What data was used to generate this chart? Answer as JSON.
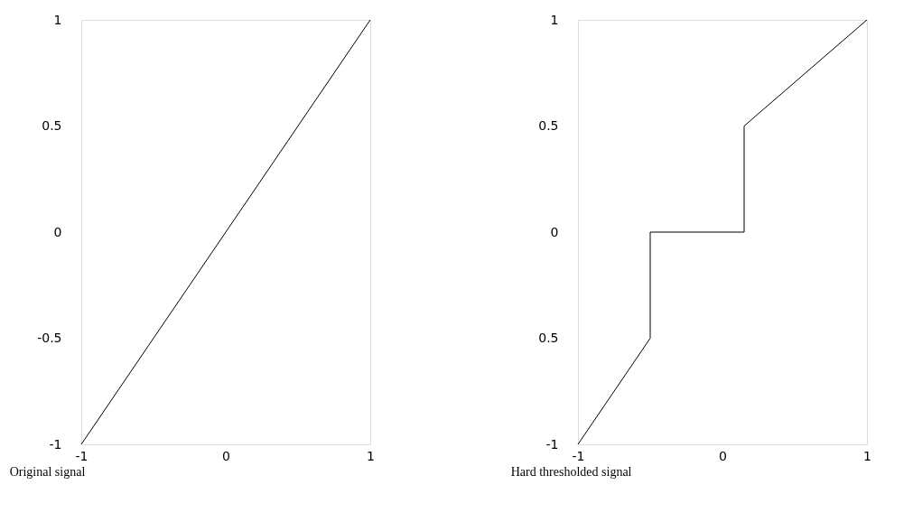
{
  "chart_data": [
    {
      "type": "line",
      "title": "Original signal",
      "x": [
        -1,
        1
      ],
      "values": [
        -1,
        1
      ],
      "xlim": [
        -1,
        1
      ],
      "ylim": [
        -1,
        1
      ],
      "xticks": [
        -1,
        0,
        1
      ],
      "yticks": [
        -1,
        -0.5,
        0,
        0.5,
        1
      ],
      "grid": false,
      "color": "#000000"
    },
    {
      "type": "line",
      "title": "Hard  thresholded  signal",
      "x": [
        -1,
        -0.5,
        -0.5,
        0.15,
        0.15,
        1
      ],
      "values": [
        -1,
        -0.5,
        0,
        0,
        0.5,
        1
      ],
      "xlim": [
        -1,
        1
      ],
      "ylim": [
        -1,
        1
      ],
      "xticks": [
        -1,
        0,
        1
      ],
      "yticks": [
        -1,
        {
          "value": -0.5,
          "label": "0.5"
        },
        0,
        0.5,
        1
      ],
      "grid": false,
      "color": "#000000"
    }
  ]
}
